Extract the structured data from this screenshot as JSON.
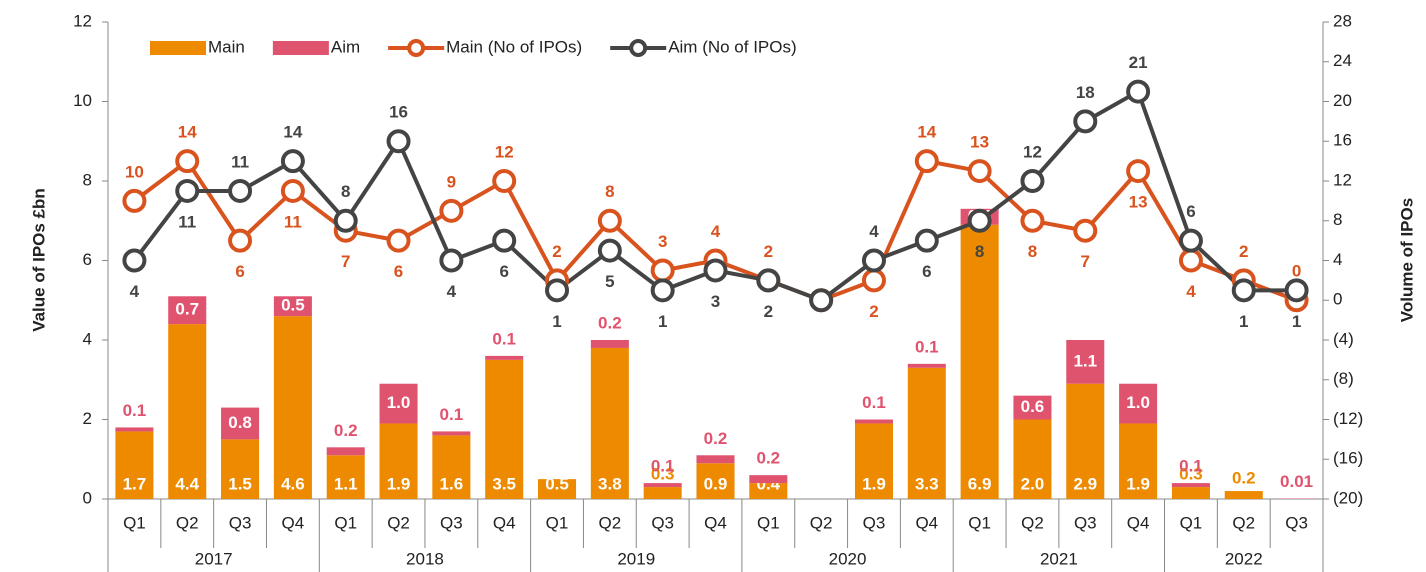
{
  "chart_data": {
    "type": "combo",
    "y_label": "Value of IPOs £bn",
    "y2_label": "Volume of IPOs",
    "categories": [
      "Q1",
      "Q2",
      "Q3",
      "Q4",
      "Q1",
      "Q2",
      "Q3",
      "Q4",
      "Q1",
      "Q2",
      "Q3",
      "Q4",
      "Q1",
      "Q2",
      "Q3",
      "Q4",
      "Q1",
      "Q2",
      "Q3",
      "Q4",
      "Q1",
      "Q2",
      "Q3"
    ],
    "groups": [
      {
        "name": "2017",
        "count": 4
      },
      {
        "name": "2018",
        "count": 4
      },
      {
        "name": "2019",
        "count": 4
      },
      {
        "name": "2020",
        "count": 4
      },
      {
        "name": "2021",
        "count": 4
      },
      {
        "name": "2022",
        "count": 3
      }
    ],
    "ylim": [
      0,
      12
    ],
    "yticks": [
      0,
      2,
      4,
      6,
      8,
      10,
      12
    ],
    "y2lim": [
      -20,
      28
    ],
    "y2ticks": [
      {
        "value": -20,
        "label": "(20)"
      },
      {
        "value": -16,
        "label": "(16)"
      },
      {
        "value": -12,
        "label": "(12)"
      },
      {
        "value": -8,
        "label": "(8)"
      },
      {
        "value": -4,
        "label": "(4)"
      },
      0,
      4,
      8,
      12,
      16,
      20,
      24,
      28
    ],
    "series": [
      {
        "name": "Main",
        "kind": "bar",
        "color": "#ee8a00",
        "values": [
          1.7,
          4.4,
          1.5,
          4.6,
          1.1,
          1.9,
          1.6,
          3.5,
          0.5,
          3.8,
          0.3,
          0.9,
          0.4,
          null,
          1.9,
          3.3,
          6.9,
          2.0,
          2.9,
          1.9,
          0.3,
          0.2,
          null
        ],
        "value_labels": [
          "1.7",
          "4.4",
          "1.5",
          "4.6",
          "1.1",
          "1.9",
          "1.6",
          "3.5",
          "0.5",
          "3.8",
          "0.3",
          "0.9",
          "0.4",
          null,
          "1.9",
          "3.3",
          "6.9",
          "2.0",
          "2.9",
          "1.9",
          "0.3",
          "0.2",
          null
        ]
      },
      {
        "name": "Aim",
        "kind": "bar",
        "color": "#e0536e",
        "values": [
          0.1,
          0.7,
          0.8,
          0.5,
          0.2,
          1.0,
          0.1,
          0.1,
          null,
          0.2,
          0.1,
          0.2,
          0.2,
          null,
          0.1,
          0.1,
          0.4,
          0.6,
          1.1,
          1.0,
          0.1,
          null,
          0.01
        ],
        "value_labels": [
          "0.1",
          "0.7",
          "0.8",
          "0.5",
          "0.2",
          "1.0",
          "0.1",
          "0.1",
          null,
          "0.2",
          "0.1",
          "0.2",
          "0.2",
          null,
          "0.1",
          "0.1",
          "0.4",
          "0.6",
          "1.1",
          "1.0",
          "0.1",
          null,
          "0.01"
        ]
      },
      {
        "name": "Main (No of IPOs)",
        "kind": "line",
        "axis": "y2",
        "color": "#d9531e",
        "values": [
          10,
          14,
          6,
          11,
          7,
          6,
          9,
          12,
          2,
          8,
          3,
          4,
          2,
          0,
          2,
          14,
          13,
          8,
          7,
          13,
          4,
          2,
          0
        ],
        "value_labels": [
          "10",
          "14",
          "6",
          "11",
          "7",
          "6",
          "9",
          "12",
          "2",
          "8",
          "3",
          "4",
          "2",
          null,
          "2",
          "14",
          "13",
          "8",
          "7",
          "13",
          "4",
          "2",
          "0"
        ]
      },
      {
        "name": "Aim (No of IPOs)",
        "kind": "line",
        "axis": "y2",
        "color": "#444444",
        "values": [
          4,
          11,
          11,
          14,
          8,
          16,
          4,
          6,
          1,
          5,
          1,
          3,
          2,
          0,
          4,
          6,
          8,
          12,
          18,
          21,
          6,
          1,
          1
        ],
        "value_labels": [
          "4",
          "11",
          "11",
          "14",
          "8",
          "16",
          "4",
          "6",
          "1",
          "5",
          "1",
          "3",
          "2",
          null,
          "4",
          "6",
          "8",
          "12",
          "18",
          "21",
          "6",
          "1",
          "1"
        ]
      }
    ]
  }
}
